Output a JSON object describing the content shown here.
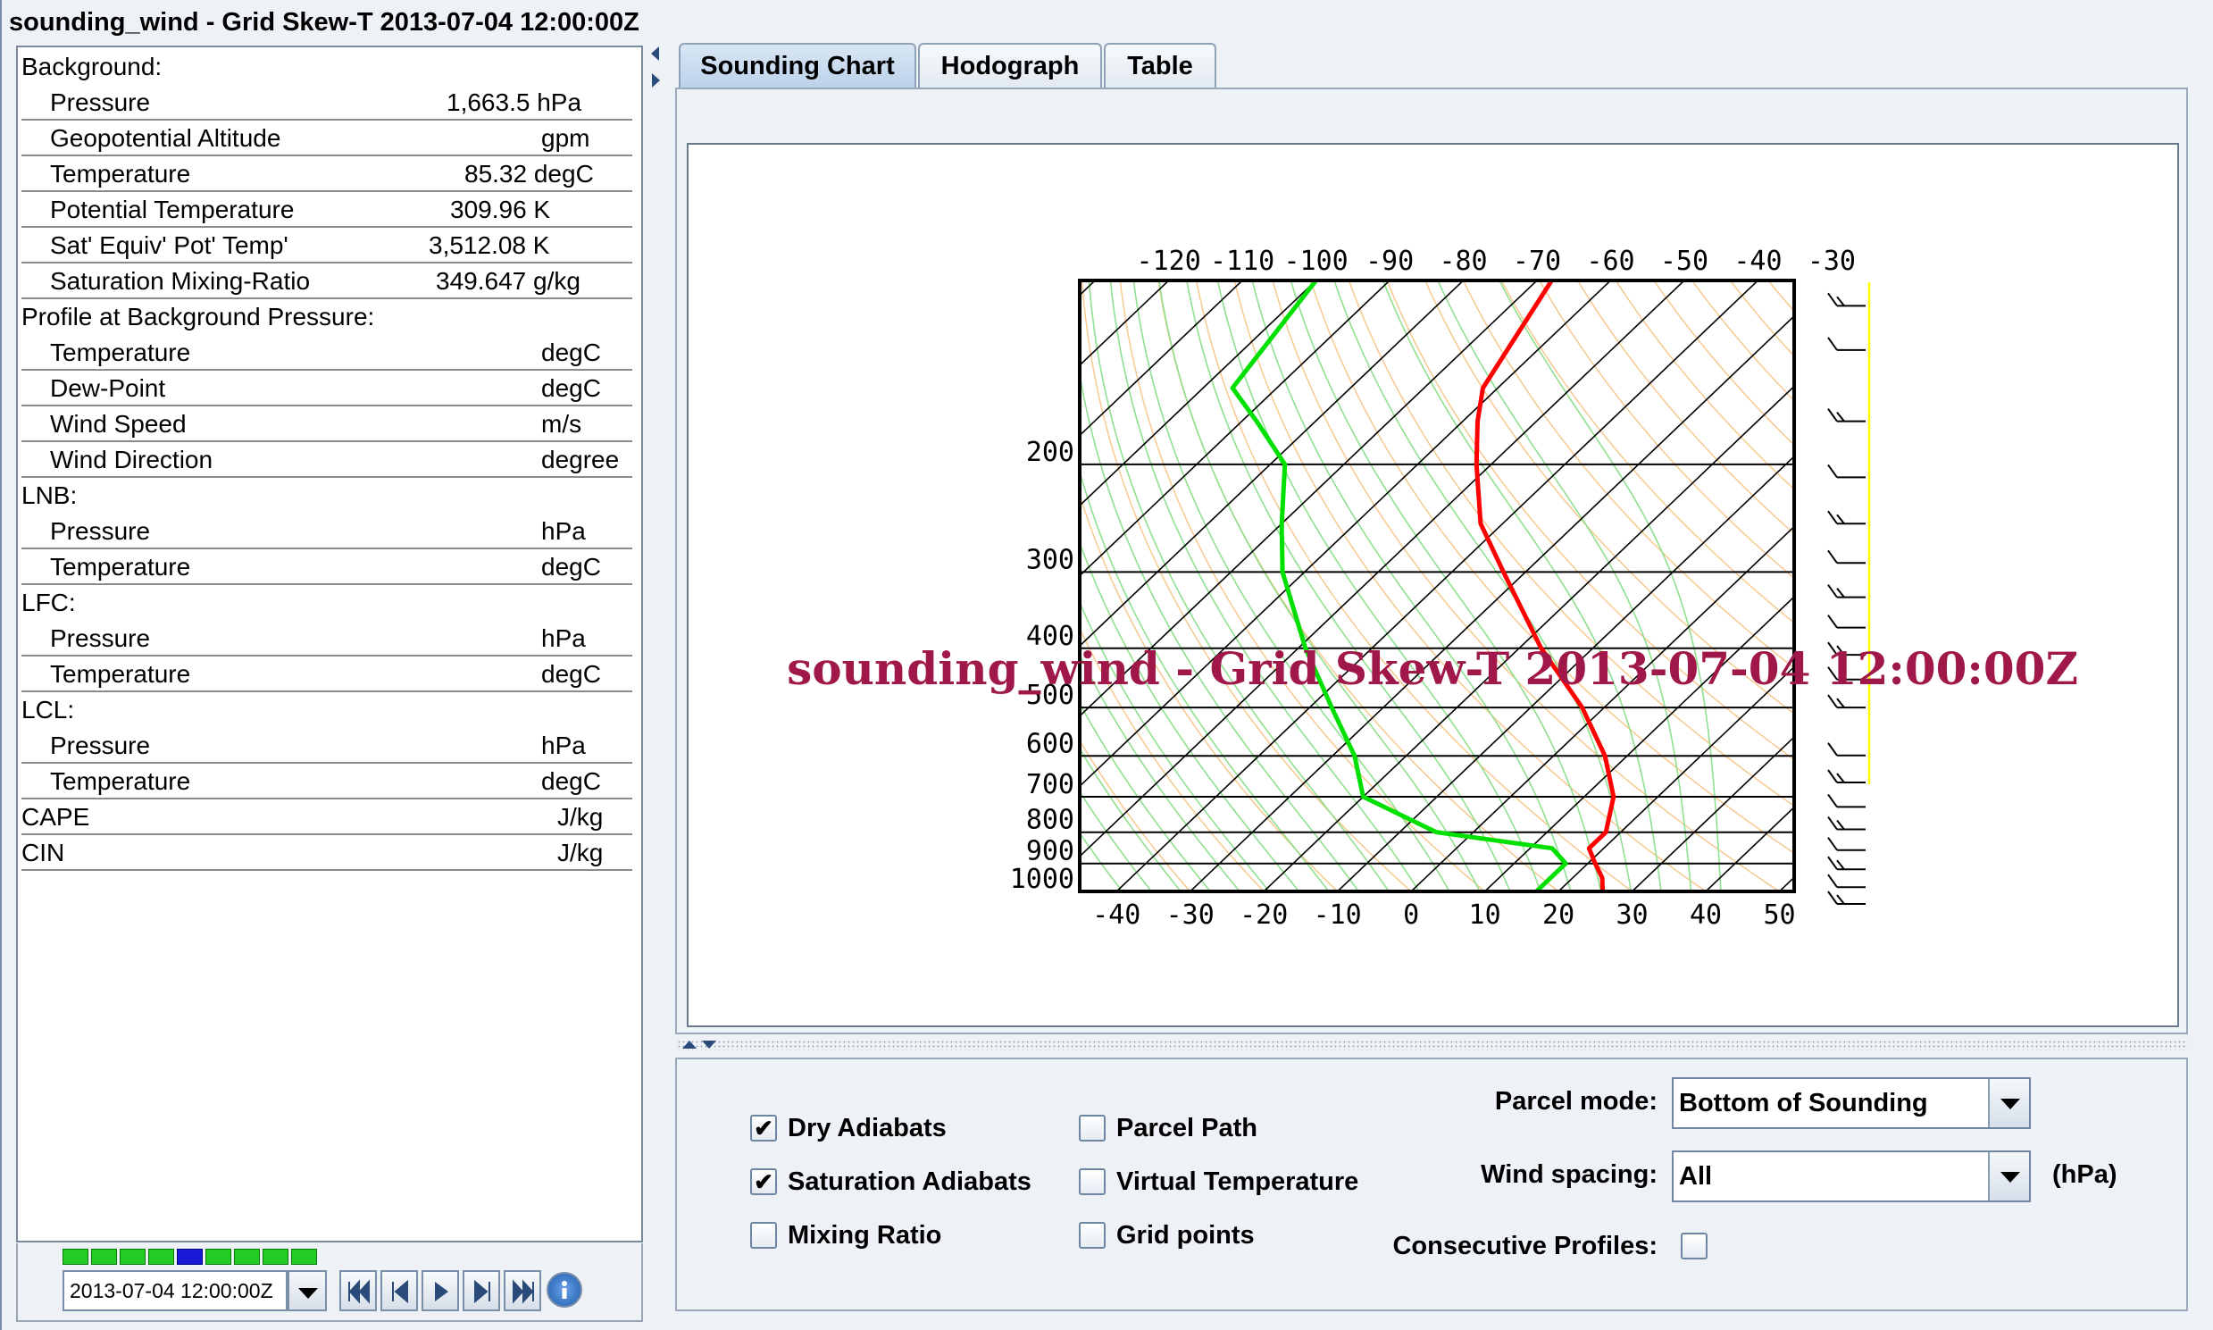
{
  "window": {
    "title": "sounding_wind - Grid Skew-T 2013-07-04 12:00:00Z"
  },
  "info": {
    "background_header": "Background:",
    "background": [
      {
        "label": "Pressure",
        "value": "1,663.5 hPa"
      },
      {
        "label": "Geopotential Altitude",
        "value": "gpm"
      },
      {
        "label": "Temperature",
        "value": "85.32 degC"
      },
      {
        "label": "Potential Temperature",
        "value": "309.96 K"
      },
      {
        "label": "Sat' Equiv' Pot' Temp'",
        "value": "3,512.08 K"
      },
      {
        "label": "Saturation Mixing-Ratio",
        "value": "349.647 g/kg"
      }
    ],
    "profile_header": "Profile at Background Pressure:",
    "profile": [
      {
        "label": "Temperature",
        "value": "degC"
      },
      {
        "label": "Dew-Point",
        "value": "degC"
      },
      {
        "label": "Wind Speed",
        "value": "m/s"
      },
      {
        "label": "Wind Direction",
        "value": "degree"
      }
    ],
    "lnb_header": "LNB:",
    "lnb": [
      {
        "label": "Pressure",
        "value": "hPa"
      },
      {
        "label": "Temperature",
        "value": "degC"
      }
    ],
    "lfc_header": "LFC:",
    "lfc": [
      {
        "label": "Pressure",
        "value": "hPa"
      },
      {
        "label": "Temperature",
        "value": "degC"
      }
    ],
    "lcl_header": "LCL:",
    "lcl": [
      {
        "label": "Pressure",
        "value": "hPa"
      },
      {
        "label": "Temperature",
        "value": "degC"
      }
    ],
    "cape": {
      "label": "CAPE",
      "value": "J/kg"
    },
    "cin": {
      "label": "CIN",
      "value": "J/kg"
    }
  },
  "animation": {
    "time": "2013-07-04 12:00:00Z",
    "ticks": 9,
    "current_tick": 4,
    "buttons": [
      "first-icon",
      "step-back-icon",
      "play-icon",
      "step-forward-icon",
      "last-icon",
      "info-icon"
    ]
  },
  "tabs": [
    "Sounding Chart",
    "Hodograph",
    "Table"
  ],
  "active_tab": 0,
  "chart_data": {
    "type": "line",
    "title": "sounding_wind - Grid Skew-T 2013-07-04 12:00:00Z",
    "title_color": "#a0184a",
    "top_temp_ticks": [
      "-120",
      "-110",
      "-100",
      "-90",
      "-80",
      "-70",
      "-60",
      "-50",
      "-40",
      "-30"
    ],
    "bottom_temp_ticks": [
      "-40",
      "-30",
      "-20",
      "-10",
      "0",
      "10",
      "20",
      "30",
      "40",
      "50"
    ],
    "pressure_ticks": [
      "200",
      "300",
      "400",
      "500",
      "600",
      "700",
      "800",
      "900",
      "1000"
    ],
    "pressure_range": [
      1000,
      100
    ],
    "temperature_range_at_1000": [
      -45,
      52
    ],
    "series": [
      {
        "color": "#ff0000",
        "points": [
          [
            1000,
            26
          ],
          [
            950,
            24
          ],
          [
            900,
            21
          ],
          [
            850,
            18
          ],
          [
            800,
            18
          ],
          [
            700,
            14
          ],
          [
            600,
            7
          ],
          [
            500,
            -3
          ],
          [
            400,
            -17
          ],
          [
            300,
            -33
          ],
          [
            250,
            -43
          ],
          [
            200,
            -52
          ],
          [
            170,
            -58
          ],
          [
            150,
            -62
          ],
          [
            100,
            -68
          ]
        ]
      },
      {
        "color": "#00e000",
        "points": [
          [
            1000,
            17
          ],
          [
            950,
            17
          ],
          [
            900,
            17
          ],
          [
            850,
            13
          ],
          [
            800,
            -5
          ],
          [
            700,
            -20
          ],
          [
            600,
            -27
          ],
          [
            500,
            -37
          ],
          [
            400,
            -49
          ],
          [
            300,
            -63
          ],
          [
            250,
            -70
          ],
          [
            200,
            -78
          ],
          [
            170,
            -88
          ],
          [
            150,
            -96
          ],
          [
            100,
            -100
          ]
        ]
      }
    ],
    "wind_barb_line_color": "#ffff00"
  },
  "controls": {
    "checkboxes": [
      {
        "label": "Dry Adiabats",
        "checked": true
      },
      {
        "label": "Saturation Adiabats",
        "checked": true
      },
      {
        "label": "Mixing Ratio",
        "checked": false
      },
      {
        "label": "Parcel Path",
        "checked": false
      },
      {
        "label": "Virtual Temperature",
        "checked": false
      },
      {
        "label": "Grid points",
        "checked": false
      }
    ],
    "parcel_mode_label": "Parcel mode:",
    "parcel_mode_value": "Bottom of Sounding",
    "wind_spacing_label": "Wind spacing:",
    "wind_spacing_value": "All",
    "wind_spacing_unit": "(hPa)",
    "consecutive_label": "Consecutive Profiles:",
    "consecutive_checked": false
  }
}
